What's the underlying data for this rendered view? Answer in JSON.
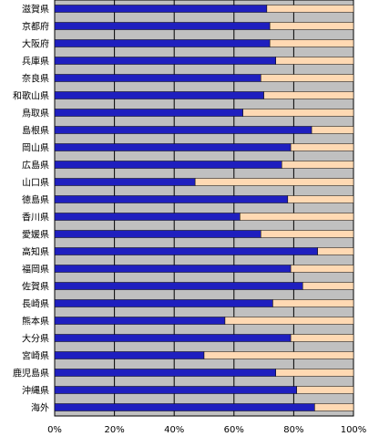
{
  "chart_data": {
    "type": "bar",
    "orientation": "horizontal",
    "stacked": true,
    "categories": [
      "滋賀県",
      "京都府",
      "大阪府",
      "兵庫県",
      "奈良県",
      "和歌山県",
      "鳥取県",
      "島根県",
      "岡山県",
      "広島県",
      "山口県",
      "徳島県",
      "香川県",
      "愛媛県",
      "高知県",
      "福岡県",
      "佐賀県",
      "長崎県",
      "熊本県",
      "大分県",
      "宮崎県",
      "鹿児島県",
      "沖縄県",
      "海外"
    ],
    "series": [
      {
        "color": "#1f1fbf",
        "values": [
          71,
          72,
          72,
          74,
          69,
          70,
          63,
          86,
          79,
          76,
          47,
          78,
          62,
          69,
          88,
          79,
          83,
          73,
          57,
          79,
          50,
          74,
          81,
          87
        ]
      },
      {
        "color": "#ffd9b3",
        "values": [
          29,
          28,
          28,
          26,
          31,
          30,
          37,
          14,
          21,
          24,
          53,
          22,
          38,
          31,
          12,
          21,
          17,
          27,
          43,
          21,
          50,
          26,
          19,
          13
        ]
      }
    ],
    "xlim": [
      0,
      100
    ],
    "xticks": [
      "0%",
      "20%",
      "40%",
      "60%",
      "80%",
      "100%"
    ],
    "grid": true,
    "background": "#c0c0c0"
  }
}
